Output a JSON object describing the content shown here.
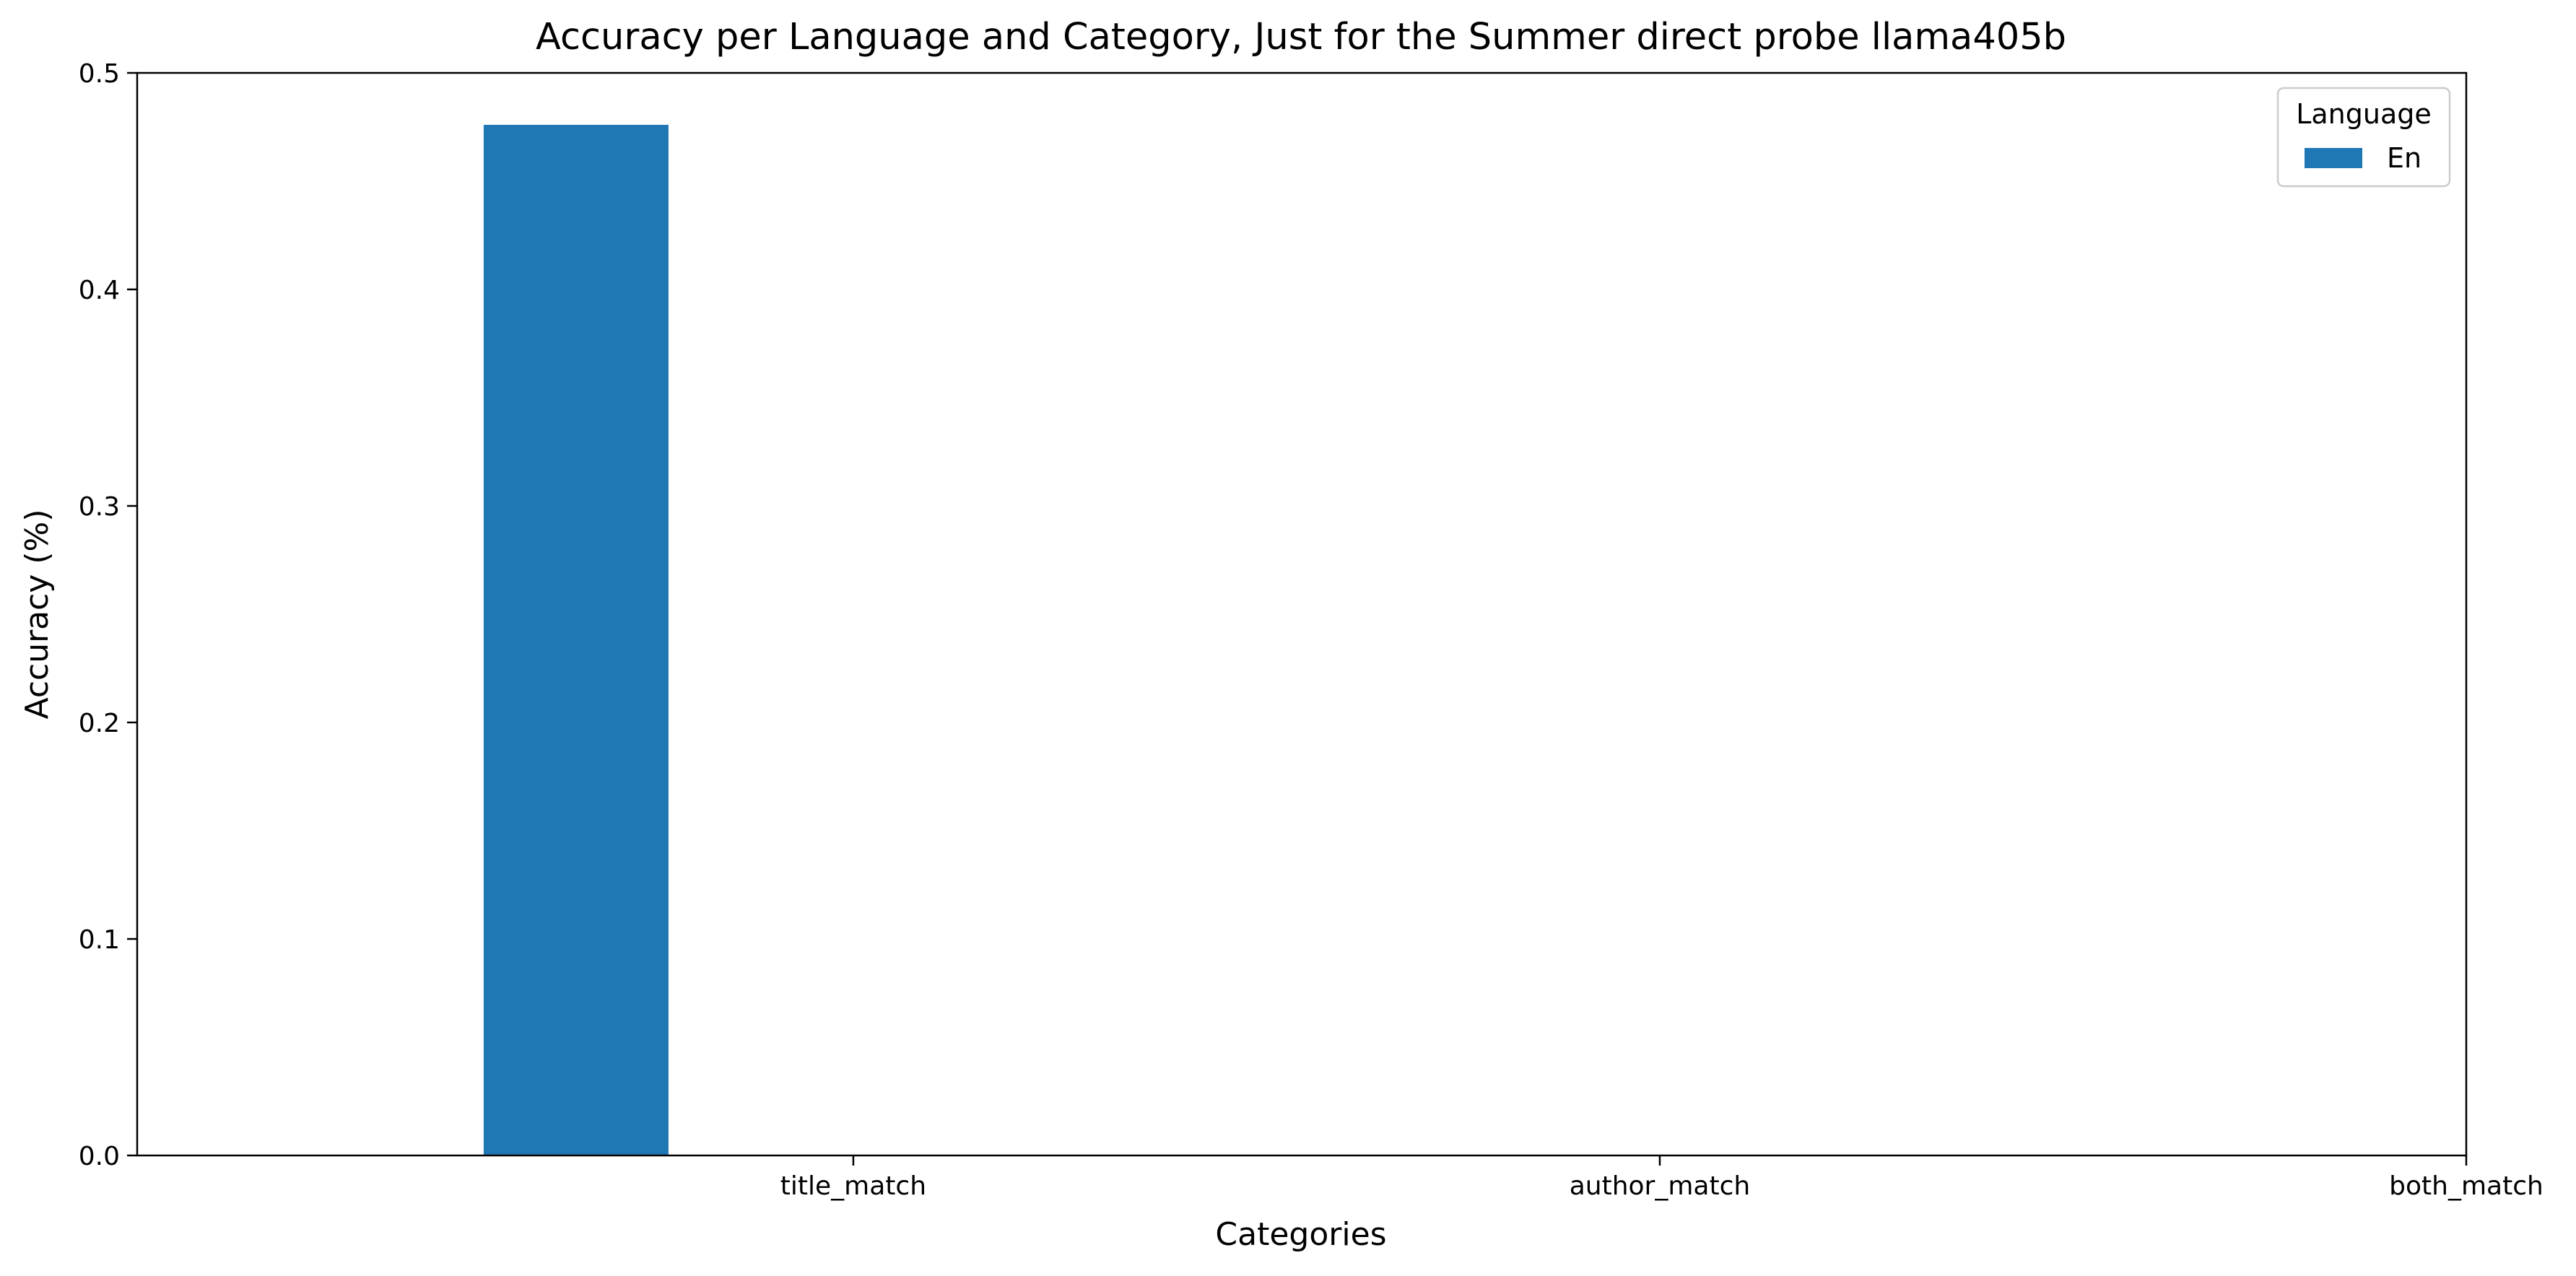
{
  "chart_data": {
    "type": "bar",
    "title": "Accuracy per Language and Category, Just for the Summer direct probe llama405b",
    "xlabel": "Categories",
    "ylabel": "Accuracy (%)",
    "categories": [
      "title_match",
      "author_match",
      "both_match"
    ],
    "series": [
      {
        "name": "En",
        "values": [
          0.476,
          0,
          0
        ],
        "color": "#1f77b4"
      }
    ],
    "ylim": [
      0,
      0.5
    ],
    "yticks": [
      "0.0",
      "0.1",
      "0.2",
      "0.3",
      "0.4",
      "0.5"
    ],
    "legend": {
      "title": "Language",
      "placement": "top-right"
    },
    "grid": false
  }
}
